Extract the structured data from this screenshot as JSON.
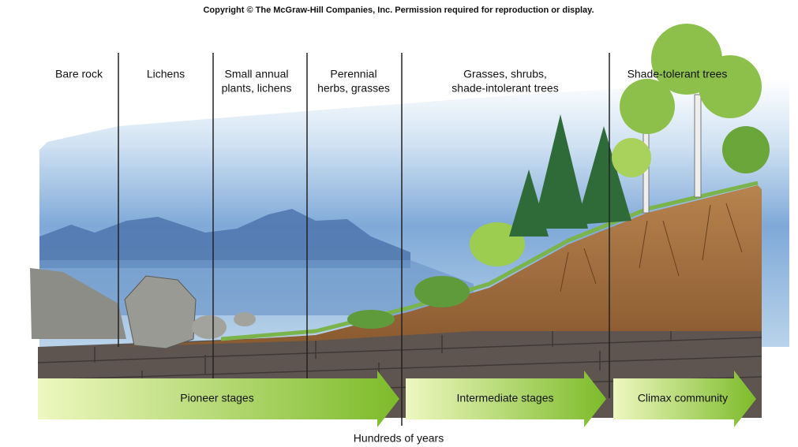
{
  "copyright": "Copyright © The McGraw-Hill Companies, Inc. Permission required for reproduction or display.",
  "stages": [
    {
      "lines": [
        "Bare rock"
      ]
    },
    {
      "lines": [
        "Lichens"
      ]
    },
    {
      "lines": [
        "Small annual",
        "plants, lichens"
      ]
    },
    {
      "lines": [
        "Perennial",
        "herbs, grasses"
      ]
    },
    {
      "lines": [
        "Grasses, shrubs,",
        "shade-intolerant trees"
      ]
    },
    {
      "lines": [
        "Shade-tolerant trees"
      ]
    }
  ],
  "phases": [
    "Pioneer stages",
    "Intermediate stages",
    "Climax community"
  ],
  "axis_label": "Hundreds of years"
}
